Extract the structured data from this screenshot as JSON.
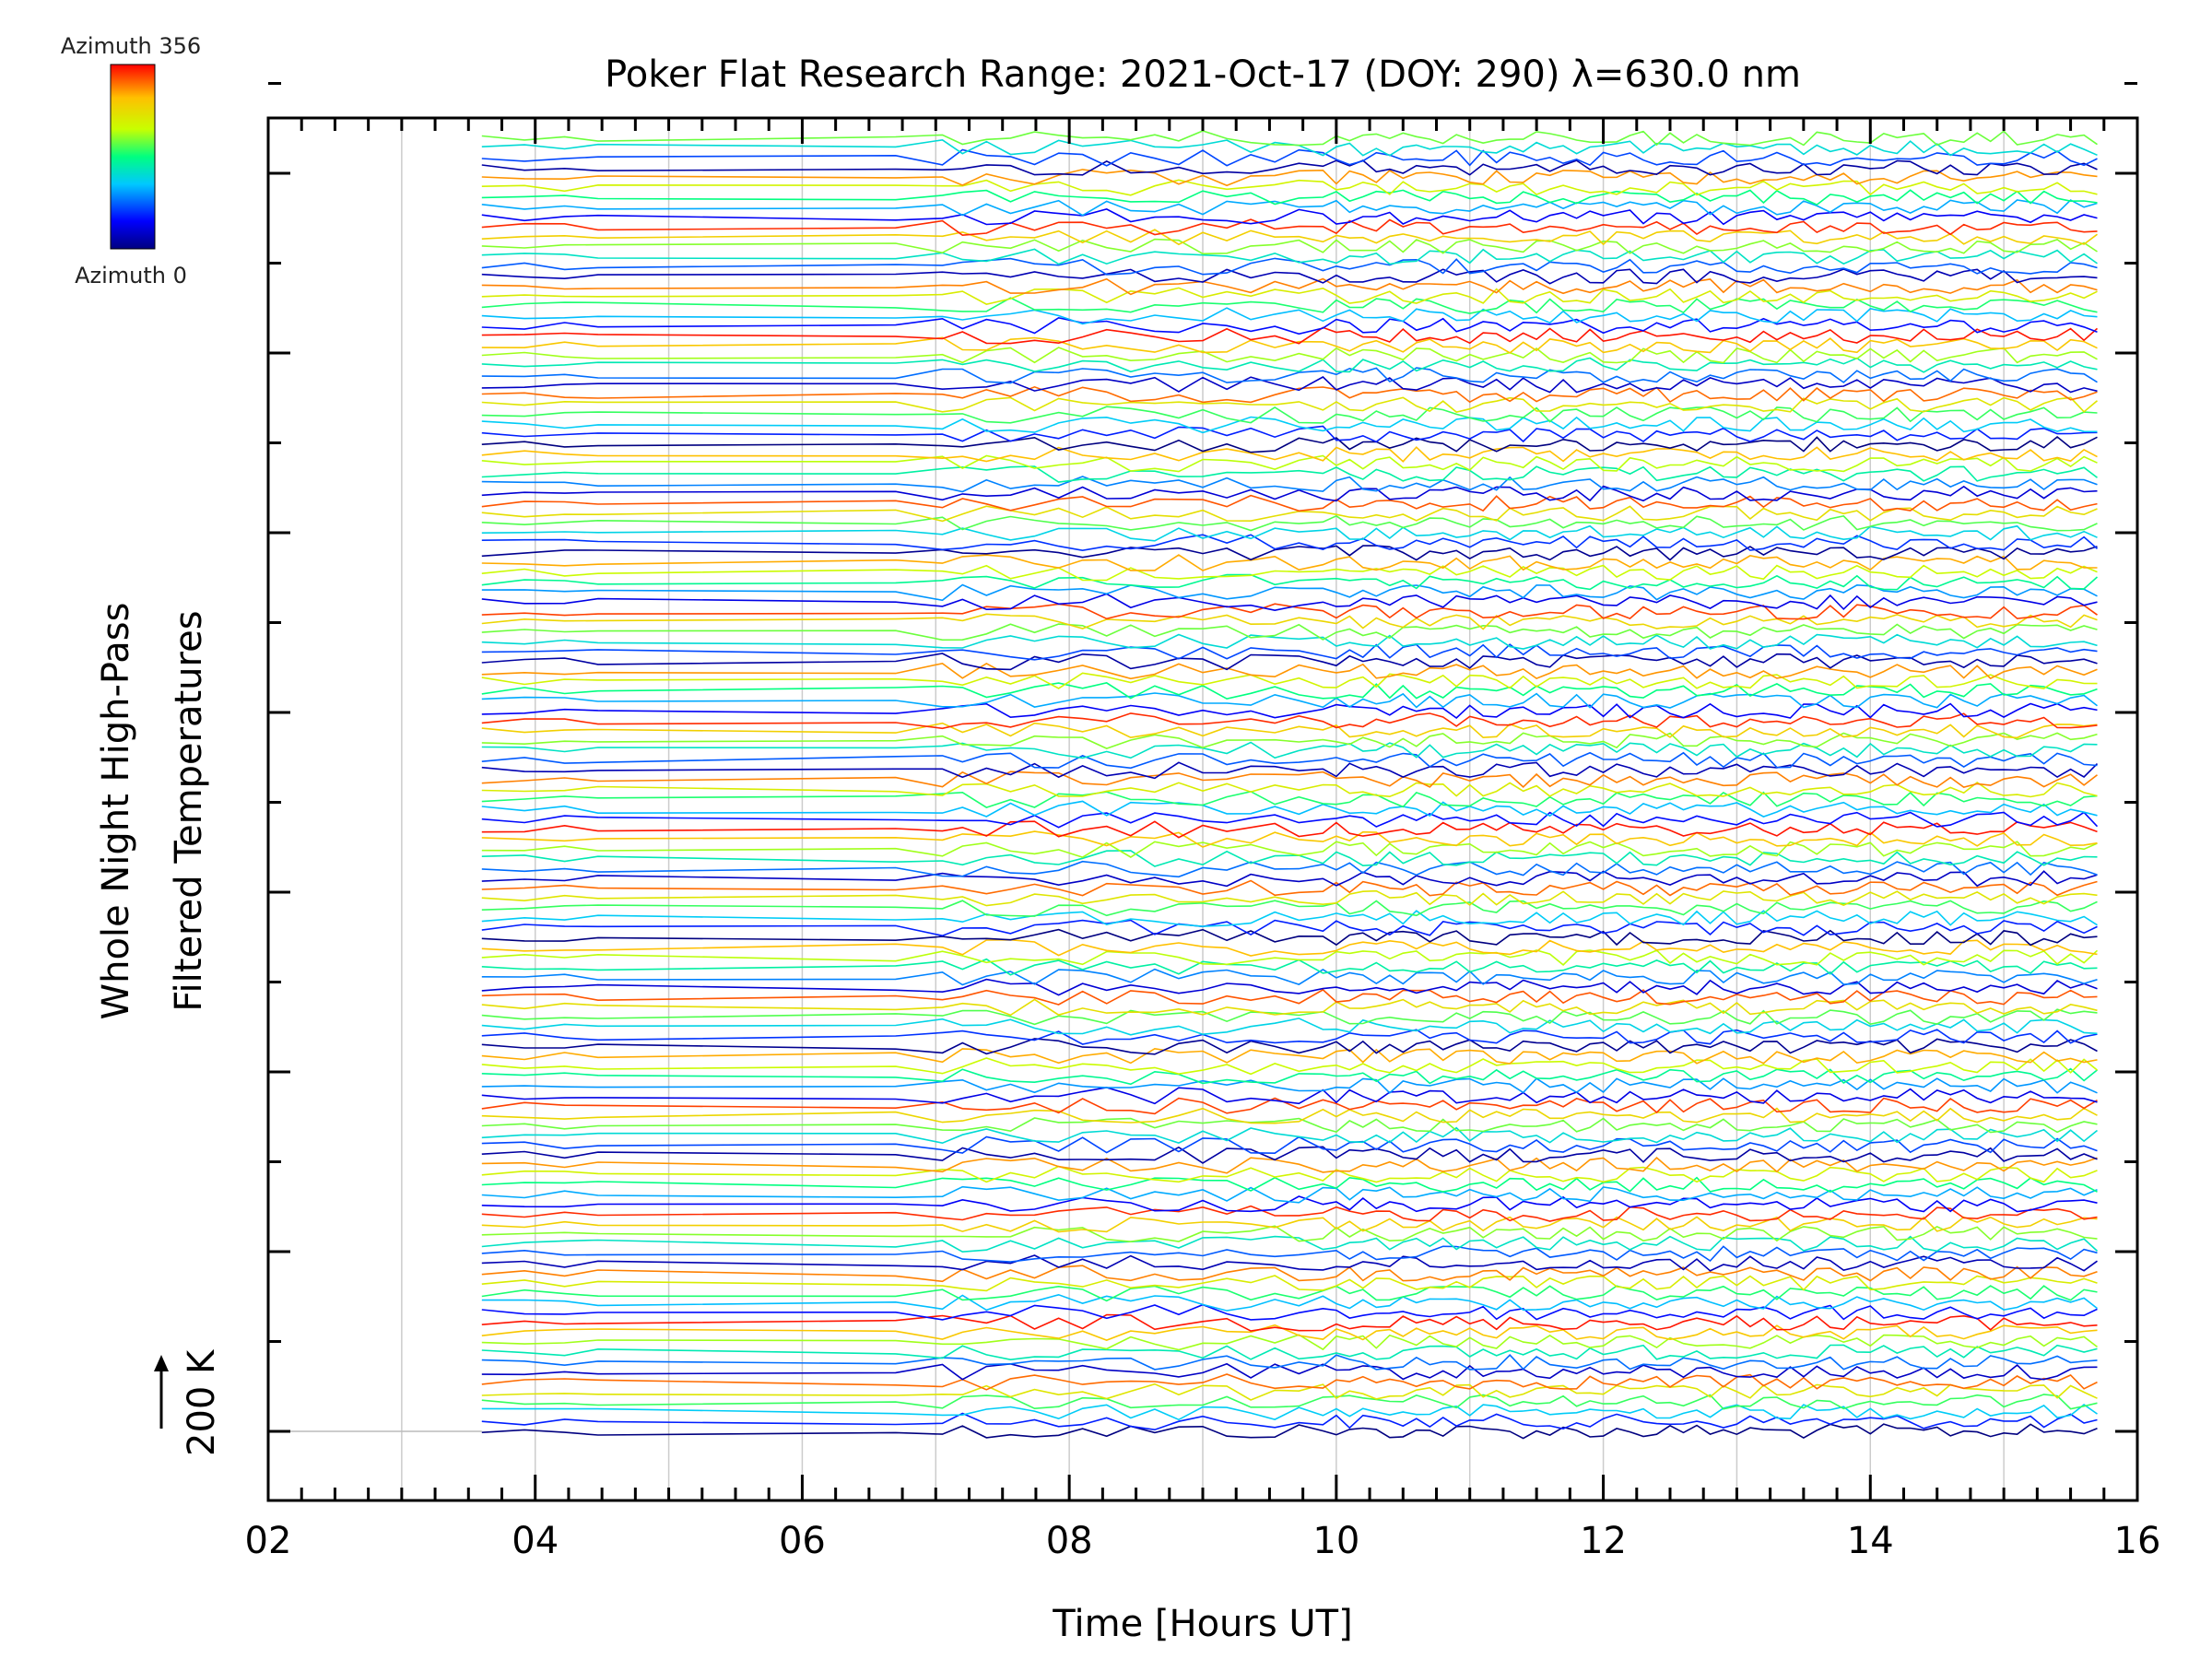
{
  "chart_data": {
    "type": "line",
    "title": "Poker Flat Research Range: 2021-Oct-17 (DOY: 290) λ=630.0 nm",
    "xlabel": "Time [Hours UT]",
    "ylabel_line1": "Whole Night High-Pass",
    "ylabel_line2": "Filtered Temperatures",
    "xlim": [
      2,
      16
    ],
    "x_ticks": [
      "02",
      "04",
      "06",
      "08",
      "10",
      "12",
      "14",
      "16"
    ],
    "x_tick_values": [
      2,
      4,
      6,
      8,
      10,
      12,
      14,
      16
    ],
    "data_x_range": [
      3.6,
      15.75
    ],
    "scale_bar_label": "200 K",
    "series_count": 132,
    "colorbar": {
      "top_label": "Azimuth 356",
      "bottom_label": "Azimuth 0",
      "colormap": "rainbow",
      "min": 0,
      "max": 356
    },
    "grid": true,
    "colors": {
      "grid": "#cccccc",
      "axis": "#000000"
    }
  }
}
